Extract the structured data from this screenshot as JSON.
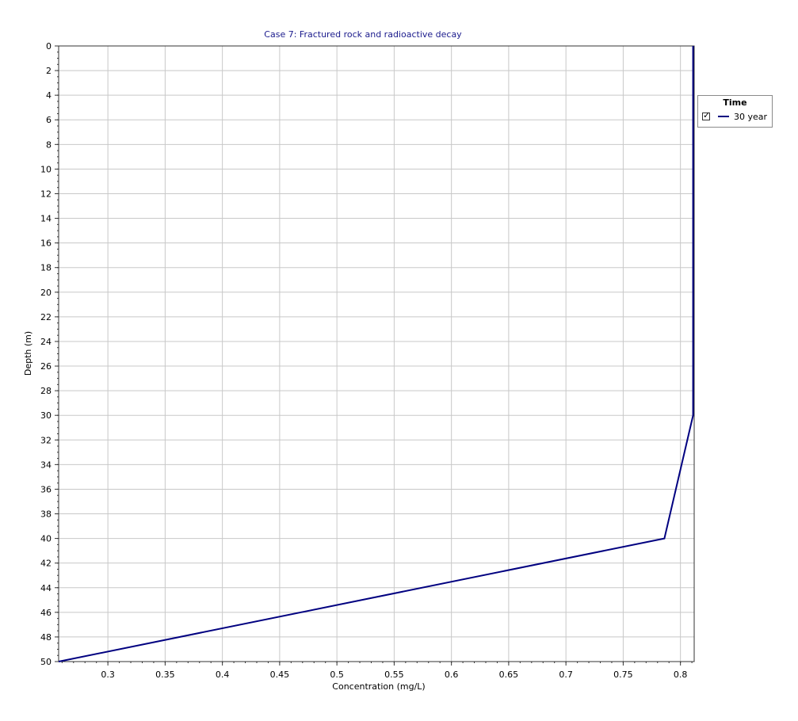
{
  "chart_data": {
    "type": "line",
    "title": "Case 7: Fractured rock and radioactive decay",
    "xlabel": "Concentration (mg/L)",
    "ylabel": "Depth (m)",
    "xlim": [
      0.257,
      0.812
    ],
    "ylim": [
      0,
      50
    ],
    "y_inverted": true,
    "grid": true,
    "x_ticks": [
      0.3,
      0.35,
      0.4,
      0.45,
      0.5,
      0.55,
      0.6,
      0.65,
      0.7,
      0.75,
      0.8
    ],
    "x_tick_labels": [
      "0.3",
      "0.35",
      "0.4",
      "0.45",
      "0.5",
      "0.55",
      "0.6",
      "0.65",
      "0.7",
      "0.75",
      "0.8"
    ],
    "y_ticks": [
      0,
      2,
      4,
      6,
      8,
      10,
      12,
      14,
      16,
      18,
      20,
      22,
      24,
      26,
      28,
      30,
      32,
      34,
      36,
      38,
      40,
      42,
      44,
      46,
      48,
      50
    ],
    "y_tick_labels": [
      "0",
      "2",
      "4",
      "6",
      "8",
      "10",
      "12",
      "14",
      "16",
      "18",
      "20",
      "22",
      "24",
      "26",
      "28",
      "30",
      "32",
      "34",
      "36",
      "38",
      "40",
      "42",
      "44",
      "46",
      "48",
      "50"
    ],
    "legend": {
      "title": "Time",
      "position": "top-right, outside plot"
    },
    "series": [
      {
        "name": "30 year",
        "color": "#000080",
        "x": [
          0.811,
          0.811,
          0.786,
          0.257
        ],
        "y": [
          0,
          30,
          40,
          50
        ]
      }
    ]
  }
}
